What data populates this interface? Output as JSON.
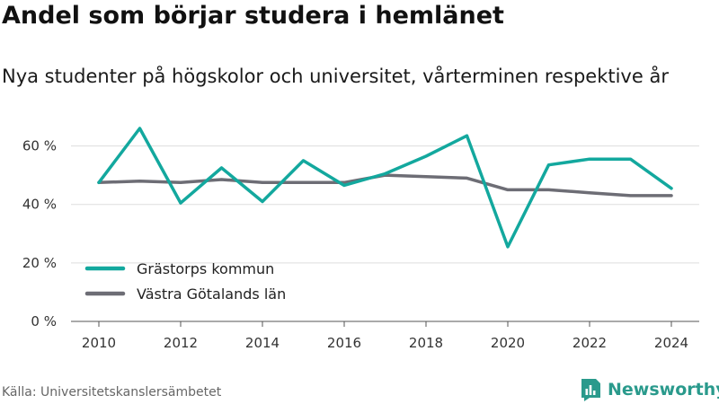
{
  "title": "Andel som börjar studera i hemlänet",
  "subtitle": "Nya studenter på högskolor och universitet, vårterminen respektive år",
  "source": "Källa: Universitetskanslersämbetet",
  "brand": {
    "name": "Newsworthy",
    "icon": "newsworthy-logo-icon",
    "color": "#2a9a8c"
  },
  "chart_data": {
    "type": "line",
    "title": "Andel som börjar studera i hemlänet",
    "subtitle": "Nya studenter på högskolor och universitet, vårterminen respektive år",
    "x": [
      2010,
      2011,
      2012,
      2013,
      2014,
      2015,
      2016,
      2017,
      2018,
      2019,
      2020,
      2021,
      2022,
      2023,
      2024
    ],
    "series": [
      {
        "name": "Grästorps kommun",
        "color": "#13a89e",
        "values": [
          47.5,
          66,
          40.5,
          52.5,
          41,
          55,
          46.5,
          50.5,
          56.5,
          63.5,
          25.5,
          53.5,
          55.5,
          55.5,
          45.5
        ]
      },
      {
        "name": "Västra Götalands län",
        "color": "#6d6d75",
        "values": [
          47.5,
          48,
          47.5,
          48.5,
          47.5,
          47.5,
          47.5,
          50,
          49.5,
          49,
          45,
          45,
          44,
          43,
          43
        ]
      }
    ],
    "xlabel": "",
    "ylabel": "",
    "ylim": [
      0,
      70
    ],
    "yticks": [
      0,
      20,
      40,
      60
    ],
    "ytick_labels": [
      "0 %",
      "20 %",
      "40 %",
      "60 %"
    ],
    "xticks": [
      2010,
      2012,
      2014,
      2016,
      2018,
      2020,
      2022,
      2024
    ],
    "xtick_labels": [
      "2010",
      "2012",
      "2014",
      "2016",
      "2018",
      "2020",
      "2022",
      "2024"
    ],
    "grid": true,
    "legend_position": "bottom-left"
  }
}
